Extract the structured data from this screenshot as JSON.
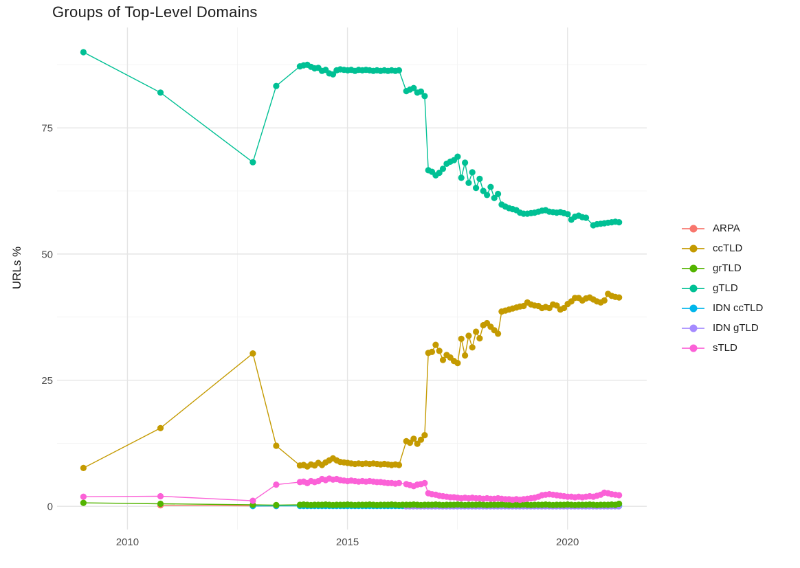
{
  "title": "Groups of Top-Level Domains",
  "chart_data": {
    "type": "line",
    "title": "Groups of Top-Level Domains",
    "xlabel": "",
    "ylabel": "URLs %",
    "x_ticks": [
      2010,
      2015,
      2020
    ],
    "x_minor": [
      2012.5,
      2017.5
    ],
    "y_ticks": [
      0,
      25,
      50,
      75
    ],
    "y_minor": [
      12.5,
      37.5,
      62.5,
      87.5
    ],
    "x_range": [
      2008.4,
      2021.8
    ],
    "y_range": [
      -4.6,
      94.9
    ],
    "grid": true,
    "legend_position": "right",
    "point_radius": 4.6,
    "legend": [
      {
        "label": "ARPA",
        "color": "#F8766D"
      },
      {
        "label": "ccTLD",
        "color": "#C49A00"
      },
      {
        "label": "grTLD",
        "color": "#53B400"
      },
      {
        "label": "gTLD",
        "color": "#00C094"
      },
      {
        "label": "IDN ccTLD",
        "color": "#00B6EB"
      },
      {
        "label": "IDN gTLD",
        "color": "#A58AFF"
      },
      {
        "label": "sTLD",
        "color": "#FB61D7"
      }
    ],
    "series": [
      {
        "name": "ARPA",
        "color": "#F8766D",
        "points": [
          [
            2010.75,
            0.2
          ],
          [
            2012.85,
            0.1
          ],
          [
            2013.38,
            0.06
          ]
        ]
      },
      {
        "name": "ccTLD",
        "color": "#C49A00",
        "points": [
          [
            2009,
            7.6
          ],
          [
            2010.75,
            15.5
          ],
          [
            2012.85,
            30.3
          ],
          [
            2013.38,
            12.0
          ]
        ],
        "run": {
          "start": 2013.92,
          "values": [
            8.1,
            8.2,
            7.9,
            8.3,
            8.1,
            8.6,
            8.2,
            8.7,
            9.1,
            9.5,
            9.1,
            8.8,
            8.7,
            8.6,
            8.5,
            8.4,
            8.5,
            8.4,
            8.5,
            8.4,
            8.5,
            8.4,
            8.3,
            8.4,
            8.3,
            8.2,
            8.3,
            8.2,
            null,
            12.9,
            12.6,
            13.4,
            12.4,
            13.2,
            14.1,
            30.4,
            30.6,
            32.0,
            30.8,
            29.0,
            30.0,
            29.5,
            28.8,
            28.4,
            33.2,
            29.9,
            33.8,
            31.5,
            34.6,
            33.3,
            35.9,
            36.3,
            35.6,
            34.9,
            34.2,
            38.6,
            38.8,
            39.0,
            39.2,
            39.4,
            39.6,
            39.7,
            40.4,
            40.0,
            39.8,
            39.7,
            39.3,
            39.5,
            39.3,
            40.0,
            39.8,
            39.0,
            39.3,
            40.1,
            40.6,
            41.3,
            41.3,
            40.8,
            41.2,
            41.4,
            41.0,
            40.6,
            40.4,
            40.8,
            42.1,
            41.7,
            41.5,
            41.4
          ]
        }
      },
      {
        "name": "IDN ccTLD",
        "color": "#00B6EB",
        "points": [
          [
            2012.85,
            0.05
          ],
          [
            2013.38,
            0.08
          ]
        ],
        "run": {
          "start": 2013.92,
          "values": [
            0.08,
            0.08,
            0.08,
            0.08,
            0.08,
            0.08,
            0.08,
            0.08,
            0.08,
            0.08,
            0.08,
            0.08,
            0.08,
            0.08,
            0.08,
            0.08,
            0.08,
            0.08,
            0.08,
            0.08,
            0.08,
            0.08,
            0.08,
            0.08,
            0.08,
            0.08,
            0.08,
            0.08,
            0.08,
            0.08,
            0.08,
            0.08,
            0.08,
            0.08,
            0.08,
            0.08,
            0.08,
            0.08,
            0.08,
            0.08,
            0.08,
            0.08,
            0.08,
            0.08,
            0.08,
            0.08,
            0.08,
            0.08,
            0.08,
            0.08,
            0.08,
            0.08,
            0.08,
            0.08,
            0.08,
            0.08,
            0.08,
            0.08,
            0.08,
            0.08,
            0.08,
            0.08,
            0.08,
            0.08,
            0.08,
            0.08,
            0.08,
            0.08,
            0.08,
            0.08,
            0.08,
            0.08,
            0.08,
            0.08,
            0.08,
            0.08,
            0.08,
            0.08,
            0.08,
            0.08,
            0.08,
            0.08,
            0.08,
            0.08,
            0.08,
            0.08,
            0.08,
            0.08
          ]
        }
      },
      {
        "name": "IDN gTLD",
        "color": "#A58AFF",
        "points": [],
        "run": {
          "start": 2016.33,
          "values": [
            0,
            0,
            0,
            0,
            0,
            0,
            0,
            0,
            0,
            0,
            0,
            0,
            0,
            0,
            0,
            0,
            0,
            0,
            0,
            0,
            0,
            0,
            0,
            0,
            0,
            0,
            0,
            0,
            0,
            0,
            0,
            0,
            0,
            0,
            0,
            0,
            0,
            0,
            0,
            0,
            0,
            0,
            0,
            0,
            0,
            0,
            0,
            0,
            0,
            0,
            0,
            0,
            0,
            0,
            0,
            0,
            0,
            0,
            0
          ]
        }
      },
      {
        "name": "grTLD",
        "color": "#53B400",
        "points": [
          [
            2009,
            0.7
          ],
          [
            2010.75,
            0.5
          ],
          [
            2012.85,
            0.3
          ],
          [
            2013.38,
            0.25
          ]
        ],
        "run": {
          "start": 2013.92,
          "values": [
            0.3,
            0.35,
            0.3,
            0.25,
            0.3,
            0.3,
            0.3,
            0.35,
            0.3,
            0.25,
            0.3,
            0.3,
            0.3,
            0.35,
            0.3,
            0.25,
            0.3,
            0.3,
            0.3,
            0.35,
            0.3,
            0.25,
            0.3,
            0.3,
            0.3,
            0.35,
            0.3,
            0.25,
            0.3,
            0.3,
            0.3,
            0.35,
            0.3,
            0.25,
            0.3,
            0.3,
            0.3,
            0.35,
            0.3,
            0.25,
            0.3,
            0.3,
            0.3,
            0.35,
            0.3,
            0.25,
            0.3,
            0.3,
            0.3,
            0.35,
            0.3,
            0.25,
            0.3,
            0.3,
            0.3,
            0.35,
            0.3,
            0.25,
            0.3,
            0.3,
            0.3,
            0.35,
            0.3,
            0.25,
            0.3,
            0.3,
            0.3,
            0.35,
            0.3,
            0.25,
            0.3,
            0.3,
            0.3,
            0.35,
            0.3,
            0.25,
            0.3,
            0.3,
            0.3,
            0.35,
            0.3,
            0.25,
            0.3,
            0.3,
            0.3,
            0.35,
            0.3,
            0.5
          ]
        }
      },
      {
        "name": "gTLD",
        "color": "#00C094",
        "points": [
          [
            2009,
            90
          ],
          [
            2010.75,
            82
          ],
          [
            2012.85,
            68.2
          ],
          [
            2013.38,
            83.3
          ]
        ],
        "run": {
          "start": 2013.92,
          "values": [
            87.2,
            87.4,
            87.5,
            87.1,
            86.8,
            86.9,
            86.3,
            86.5,
            85.8,
            85.6,
            86.4,
            86.6,
            86.5,
            86.4,
            86.5,
            86.3,
            86.5,
            86.4,
            86.5,
            86.4,
            86.3,
            86.4,
            86.3,
            86.4,
            86.3,
            86.4,
            86.3,
            86.4,
            null,
            82.3,
            82.6,
            82.9,
            82.0,
            82.2,
            81.3,
            66.6,
            66.3,
            65.6,
            66.1,
            66.9,
            67.9,
            68.3,
            68.6,
            69.3,
            65.1,
            68.1,
            64.1,
            66.2,
            63.1,
            64.9,
            62.5,
            61.7,
            63.3,
            61.1,
            61.9,
            59.8,
            59.4,
            59.1,
            58.9,
            58.7,
            58.2,
            58.0,
            58.0,
            58.1,
            58.2,
            58.4,
            58.6,
            58.7,
            58.4,
            58.3,
            58.2,
            58.3,
            58.1,
            57.9,
            56.8,
            57.4,
            57.6,
            57.3,
            57.2,
            null,
            55.7,
            55.9,
            56.0,
            56.1,
            56.2,
            56.3,
            56.4,
            56.3
          ]
        }
      },
      {
        "name": "sTLD",
        "color": "#FB61D7",
        "points": [
          [
            2009,
            1.9
          ],
          [
            2010.75,
            2.0
          ],
          [
            2012.85,
            1.1
          ],
          [
            2013.38,
            4.3
          ]
        ],
        "run": {
          "start": 2013.92,
          "values": [
            4.8,
            4.9,
            4.6,
            5.0,
            4.8,
            5.0,
            5.4,
            5.2,
            5.5,
            5.3,
            5.4,
            5.2,
            5.1,
            5.0,
            5.1,
            5.0,
            4.9,
            5.0,
            4.9,
            5.0,
            4.9,
            4.8,
            4.8,
            4.7,
            4.6,
            4.6,
            4.5,
            4.6,
            null,
            4.4,
            4.2,
            4.0,
            4.3,
            4.4,
            4.6,
            2.6,
            2.4,
            2.3,
            2.1,
            2.0,
            1.9,
            1.8,
            1.8,
            1.7,
            1.6,
            1.7,
            1.6,
            1.7,
            1.6,
            1.6,
            1.5,
            1.6,
            1.5,
            1.5,
            1.6,
            1.5,
            1.4,
            1.4,
            1.3,
            1.4,
            1.3,
            1.4,
            1.5,
            1.6,
            1.7,
            1.9,
            2.2,
            2.3,
            2.4,
            2.3,
            2.2,
            2.1,
            2.0,
            1.9,
            1.9,
            1.8,
            1.9,
            1.8,
            1.9,
            2.0,
            1.9,
            2.1,
            2.3,
            2.7,
            2.6,
            2.4,
            2.3,
            2.2
          ]
        }
      }
    ]
  }
}
